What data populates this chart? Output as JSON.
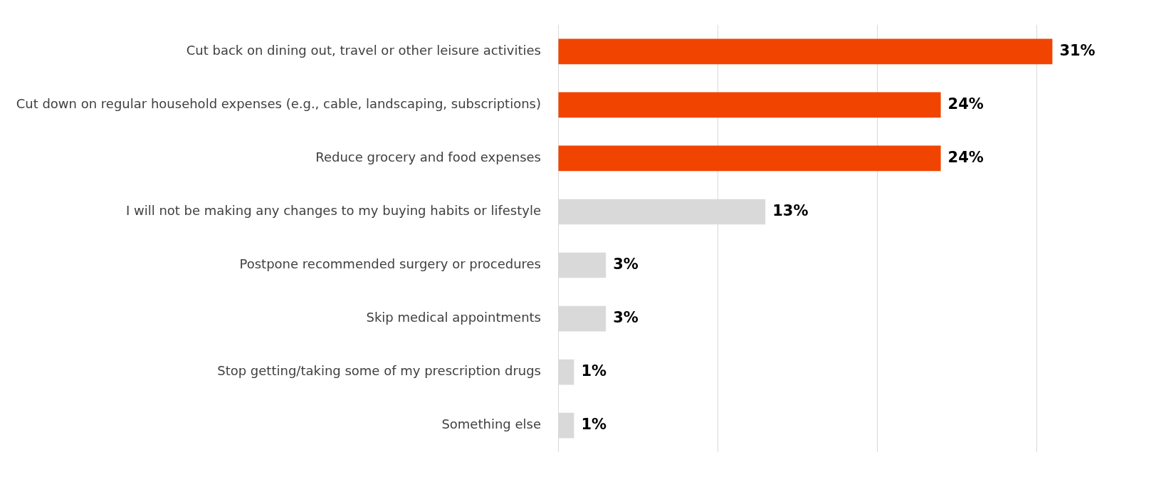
{
  "chart_data": {
    "type": "bar",
    "orientation": "horizontal",
    "categories": [
      "Cut back on dining out, travel or other leisure activities",
      "Cut down on regular household expenses (e.g., cable, landscaping, subscriptions)",
      "Reduce grocery and food expenses",
      "I will not be making any changes to my buying habits or lifestyle",
      "Postpone recommended surgery or procedures",
      "Skip medical appointments",
      "Stop getting/taking some of my prescription drugs",
      "Something else"
    ],
    "values": [
      31,
      24,
      24,
      13,
      3,
      3,
      1,
      1
    ],
    "colors": [
      "#f04400",
      "#f04400",
      "#f04400",
      "#d9d9d9",
      "#d9d9d9",
      "#d9d9d9",
      "#d9d9d9",
      "#d9d9d9"
    ],
    "value_labels": [
      "31%",
      "24%",
      "24%",
      "13%",
      "3%",
      "3%",
      "1%",
      "1%"
    ],
    "xticks": [
      {
        "value": 0,
        "label": null
      },
      {
        "value": 10,
        "label": null
      },
      {
        "value": 20,
        "label": null
      },
      {
        "value": 30,
        "label": null
      }
    ],
    "grid": "x",
    "legend": false,
    "tick_labels": "y"
  }
}
